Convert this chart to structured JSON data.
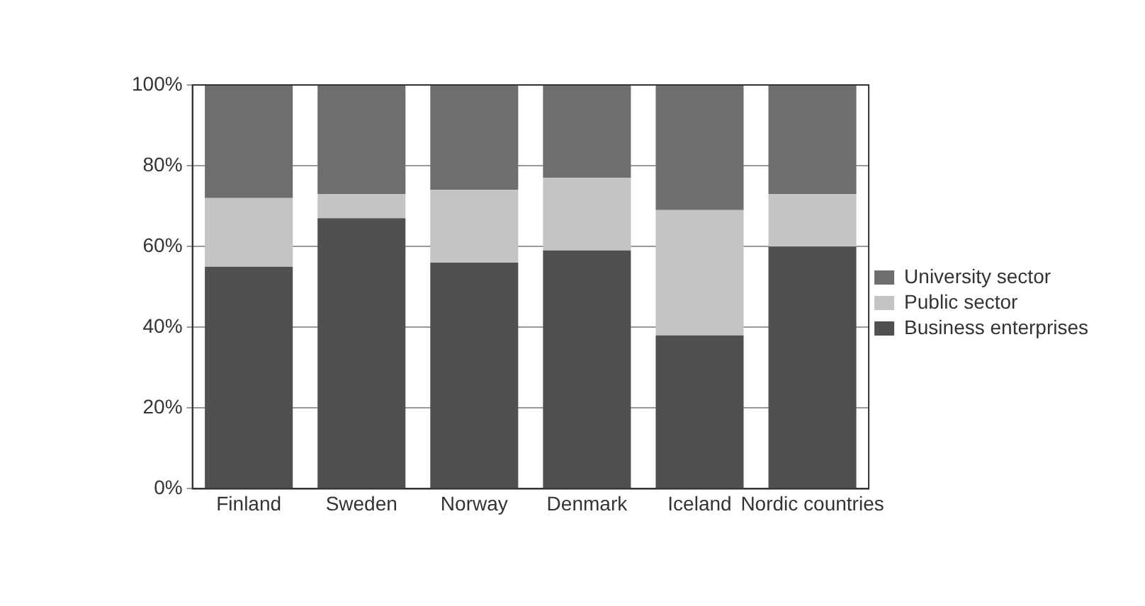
{
  "chart_data": {
    "type": "bar",
    "stacked": true,
    "categories": [
      "Finland",
      "Sweden",
      "Norway",
      "Denmark",
      "Iceland",
      "Nordic countries"
    ],
    "series": [
      {
        "name": "Business enterprises",
        "color": "#505050",
        "values": [
          55,
          67,
          56,
          59,
          38,
          60
        ]
      },
      {
        "name": "Public sector",
        "color": "#c4c4c4",
        "values": [
          17,
          6,
          18,
          18,
          31,
          13
        ]
      },
      {
        "name": "University sector",
        "color": "#6e6e6e",
        "values": [
          28,
          27,
          26,
          23,
          31,
          27
        ]
      }
    ],
    "ylim": [
      0,
      100
    ],
    "yticks": [
      {
        "value": 0,
        "label": "0%"
      },
      {
        "value": 20,
        "label": "20%"
      },
      {
        "value": 40,
        "label": "40%"
      },
      {
        "value": 60,
        "label": "60%"
      },
      {
        "value": 80,
        "label": "80%"
      },
      {
        "value": 100,
        "label": "100%"
      }
    ],
    "grid": "y",
    "legend": "right"
  }
}
